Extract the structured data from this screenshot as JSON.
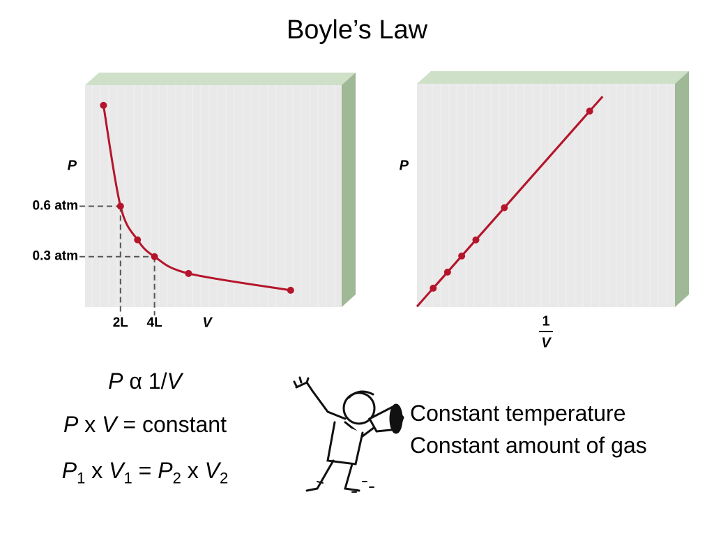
{
  "title": "Boyle’s Law",
  "chart_data": [
    {
      "type": "line",
      "ylabel": "P",
      "xlabel": "V",
      "x": [
        1,
        2,
        3,
        4,
        6,
        12
      ],
      "series": [
        {
          "color": "#b5152b",
          "values": [
            1.2,
            0.6,
            0.4,
            0.3,
            0.2,
            0.1
          ]
        }
      ],
      "xlim": [
        0,
        15
      ],
      "ylim": [
        0,
        1.32
      ],
      "xticks": [
        {
          "value": 2,
          "label": "2L"
        },
        {
          "value": 4,
          "label": "4L"
        }
      ],
      "yticks": [
        {
          "value": 0.3,
          "label": "0.3 atm"
        },
        {
          "value": 0.6,
          "label": "0.6 atm"
        }
      ],
      "guides": true,
      "smooth": true
    },
    {
      "type": "line",
      "ylabel": "P",
      "xlabel": {
        "numerator": "1",
        "denominator": "V"
      },
      "x": [
        0.083,
        0.167,
        0.25,
        0.333,
        0.5,
        1
      ],
      "series": [
        {
          "color": "#b5152b",
          "values": [
            0.1,
            0.2,
            0.3,
            0.4,
            0.6,
            1.2
          ]
        }
      ],
      "xlim": [
        0,
        1.5
      ],
      "ylim": [
        0,
        1.37
      ],
      "trend_line": true
    }
  ],
  "equations": [
    [
      {
        "text": "P",
        "italic": true
      },
      {
        "text": " α 1/"
      },
      {
        "text": "V",
        "italic": true
      }
    ],
    [
      {
        "text": "P",
        "italic": true
      },
      {
        "text": " x "
      },
      {
        "text": "V",
        "italic": true
      },
      {
        "text": " = constant"
      }
    ],
    [
      {
        "text": "P",
        "italic": true
      },
      {
        "text": "1",
        "sub": true
      },
      {
        "text": " x "
      },
      {
        "text": "V",
        "italic": true
      },
      {
        "text": "1",
        "sub": true
      },
      {
        "text": " = "
      },
      {
        "text": "P",
        "italic": true
      },
      {
        "text": "2",
        "sub": true
      },
      {
        "text": " x "
      },
      {
        "text": "V",
        "italic": true
      },
      {
        "text": "2",
        "sub": true
      }
    ]
  ],
  "notes": [
    "Constant temperature",
    "Constant amount of gas"
  ]
}
